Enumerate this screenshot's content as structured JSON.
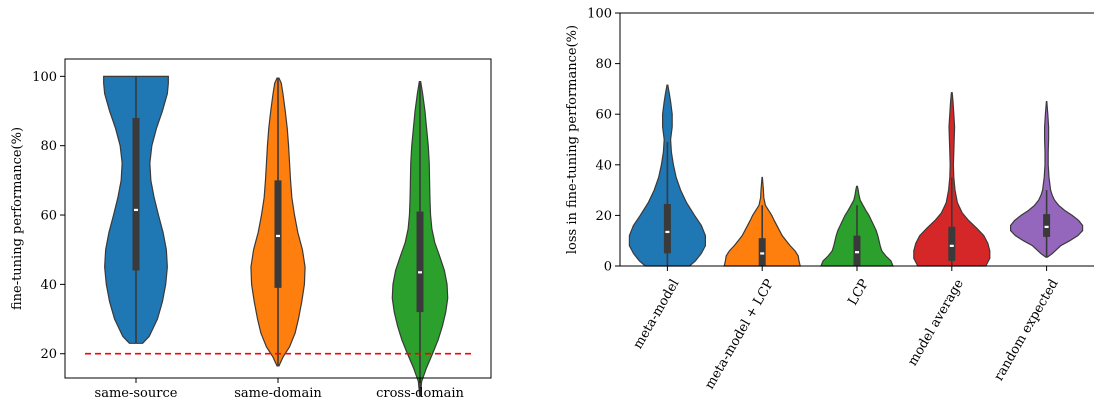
{
  "chart_data": [
    {
      "type": "violin",
      "ylabel": "fine-tuning performance(%)",
      "ylim": [
        13,
        105
      ],
      "yticks": [
        20,
        40,
        60,
        80,
        100
      ],
      "categories": [
        "same-source",
        "same-domain",
        "cross-domain"
      ],
      "reference_line": {
        "y": 20,
        "color": "#ff0000",
        "style": "dashed"
      },
      "series": [
        {
          "category": "same-source",
          "color": "#1f77b4",
          "min": 23,
          "max": 100,
          "q1": 44,
          "median": 61.5,
          "q3": 88,
          "whisker_low": 23,
          "whisker_high": 100,
          "profile": [
            [
              23,
              0.2
            ],
            [
              25,
              0.4
            ],
            [
              30,
              0.65
            ],
            [
              35,
              0.8
            ],
            [
              40,
              0.9
            ],
            [
              45,
              0.95
            ],
            [
              50,
              0.92
            ],
            [
              55,
              0.82
            ],
            [
              60,
              0.68
            ],
            [
              65,
              0.55
            ],
            [
              70,
              0.45
            ],
            [
              75,
              0.42
            ],
            [
              80,
              0.48
            ],
            [
              85,
              0.62
            ],
            [
              90,
              0.8
            ],
            [
              95,
              0.95
            ],
            [
              98,
              0.98
            ],
            [
              100,
              0.98
            ]
          ]
        },
        {
          "category": "same-domain",
          "color": "#ff7f0e",
          "min": 16.5,
          "max": 99.5,
          "q1": 39,
          "median": 54,
          "q3": 70,
          "whisker_low": 16.5,
          "whisker_high": 99.5,
          "profile": [
            [
              16.5,
              0.03
            ],
            [
              19,
              0.15
            ],
            [
              22,
              0.35
            ],
            [
              26,
              0.52
            ],
            [
              30,
              0.62
            ],
            [
              35,
              0.72
            ],
            [
              40,
              0.8
            ],
            [
              45,
              0.82
            ],
            [
              50,
              0.74
            ],
            [
              55,
              0.6
            ],
            [
              60,
              0.5
            ],
            [
              65,
              0.42
            ],
            [
              70,
              0.38
            ],
            [
              75,
              0.35
            ],
            [
              80,
              0.32
            ],
            [
              85,
              0.28
            ],
            [
              90,
              0.22
            ],
            [
              95,
              0.15
            ],
            [
              98,
              0.1
            ],
            [
              99.5,
              0.03
            ]
          ]
        },
        {
          "category": "cross-domain",
          "color": "#2ca02c",
          "min": 8,
          "max": 98.5,
          "q1": 32,
          "median": 43.5,
          "q3": 61,
          "whisker_low": 8,
          "whisker_high": 98.5,
          "profile": [
            [
              8,
              0.01
            ],
            [
              12,
              0.05
            ],
            [
              16,
              0.2
            ],
            [
              20,
              0.38
            ],
            [
              24,
              0.55
            ],
            [
              28,
              0.68
            ],
            [
              32,
              0.78
            ],
            [
              36,
              0.84
            ],
            [
              40,
              0.82
            ],
            [
              44,
              0.74
            ],
            [
              48,
              0.6
            ],
            [
              52,
              0.45
            ],
            [
              56,
              0.36
            ],
            [
              60,
              0.32
            ],
            [
              65,
              0.3
            ],
            [
              70,
              0.29
            ],
            [
              75,
              0.28
            ],
            [
              80,
              0.25
            ],
            [
              85,
              0.2
            ],
            [
              90,
              0.15
            ],
            [
              95,
              0.08
            ],
            [
              98.5,
              0.02
            ]
          ]
        }
      ]
    },
    {
      "type": "violin",
      "ylabel": "loss in fine-tuning performance(%)",
      "ylim": [
        0,
        100
      ],
      "yticks": [
        0,
        20,
        40,
        60,
        80,
        100
      ],
      "categories": [
        "meta-model",
        "meta-model + LCP",
        "LCP",
        "model average",
        "random expected"
      ],
      "series": [
        {
          "category": "meta-model",
          "color": "#1f77b4",
          "min": 0,
          "max": 71.5,
          "q1": 5,
          "median": 13.5,
          "q3": 24.5,
          "whisker_low": 0,
          "whisker_high": 49,
          "profile": [
            [
              0,
              0.55
            ],
            [
              2,
              0.7
            ],
            [
              5,
              0.85
            ],
            [
              8,
              0.95
            ],
            [
              12,
              0.95
            ],
            [
              16,
              0.85
            ],
            [
              20,
              0.68
            ],
            [
              25,
              0.48
            ],
            [
              30,
              0.33
            ],
            [
              35,
              0.22
            ],
            [
              40,
              0.15
            ],
            [
              45,
              0.1
            ],
            [
              50,
              0.08
            ],
            [
              55,
              0.12
            ],
            [
              60,
              0.12
            ],
            [
              65,
              0.08
            ],
            [
              68,
              0.05
            ],
            [
              71.5,
              0.01
            ]
          ]
        },
        {
          "category": "meta-model + LCP",
          "color": "#ff7f0e",
          "min": 0,
          "max": 35,
          "q1": 0,
          "median": 5,
          "q3": 11,
          "whisker_low": 0,
          "whisker_high": 24,
          "profile": [
            [
              0,
              0.95
            ],
            [
              2,
              0.92
            ],
            [
              4,
              0.9
            ],
            [
              6,
              0.82
            ],
            [
              8,
              0.7
            ],
            [
              10,
              0.6
            ],
            [
              12,
              0.5
            ],
            [
              15,
              0.4
            ],
            [
              18,
              0.3
            ],
            [
              20,
              0.24
            ],
            [
              22,
              0.16
            ],
            [
              24,
              0.08
            ],
            [
              27,
              0.04
            ],
            [
              30,
              0.03
            ],
            [
              33,
              0.015
            ],
            [
              35,
              0.005
            ]
          ]
        },
        {
          "category": "LCP",
          "color": "#2ca02c",
          "min": 0,
          "max": 31.5,
          "q1": 0,
          "median": 5.5,
          "q3": 12,
          "whisker_low": 0,
          "whisker_high": 24,
          "profile": [
            [
              0,
              0.9
            ],
            [
              2,
              0.85
            ],
            [
              4,
              0.72
            ],
            [
              6,
              0.62
            ],
            [
              8,
              0.58
            ],
            [
              10,
              0.55
            ],
            [
              12,
              0.52
            ],
            [
              14,
              0.48
            ],
            [
              16,
              0.42
            ],
            [
              18,
              0.36
            ],
            [
              20,
              0.3
            ],
            [
              22,
              0.22
            ],
            [
              24,
              0.15
            ],
            [
              26,
              0.08
            ],
            [
              28,
              0.05
            ],
            [
              30,
              0.03
            ],
            [
              31.5,
              0.01
            ]
          ]
        },
        {
          "category": "model average",
          "color": "#d62728",
          "min": 0,
          "max": 68.5,
          "q1": 2,
          "median": 8,
          "q3": 15.5,
          "whisker_low": 0,
          "whisker_high": 35,
          "profile": [
            [
              0,
              0.85
            ],
            [
              3,
              0.95
            ],
            [
              6,
              0.95
            ],
            [
              9,
              0.9
            ],
            [
              12,
              0.8
            ],
            [
              15,
              0.62
            ],
            [
              18,
              0.42
            ],
            [
              21,
              0.26
            ],
            [
              25,
              0.14
            ],
            [
              30,
              0.08
            ],
            [
              35,
              0.05
            ],
            [
              40,
              0.04
            ],
            [
              45,
              0.05
            ],
            [
              50,
              0.06
            ],
            [
              55,
              0.07
            ],
            [
              60,
              0.05
            ],
            [
              65,
              0.03
            ],
            [
              68.5,
              0.01
            ]
          ]
        },
        {
          "category": "random expected",
          "color": "#9467bd",
          "min": 3.5,
          "max": 65,
          "q1": 11.5,
          "median": 15.5,
          "q3": 20.5,
          "whisker_low": 3.5,
          "whisker_high": 30,
          "profile": [
            [
              3.5,
              0.02
            ],
            [
              5,
              0.15
            ],
            [
              8,
              0.35
            ],
            [
              10,
              0.58
            ],
            [
              12,
              0.78
            ],
            [
              14,
              0.9
            ],
            [
              16,
              0.9
            ],
            [
              18,
              0.8
            ],
            [
              20,
              0.64
            ],
            [
              22,
              0.45
            ],
            [
              24,
              0.3
            ],
            [
              26,
              0.2
            ],
            [
              28,
              0.14
            ],
            [
              30,
              0.1
            ],
            [
              35,
              0.06
            ],
            [
              40,
              0.04
            ],
            [
              45,
              0.04
            ],
            [
              50,
              0.05
            ],
            [
              55,
              0.05
            ],
            [
              60,
              0.03
            ],
            [
              65,
              0.005
            ]
          ]
        }
      ]
    }
  ]
}
